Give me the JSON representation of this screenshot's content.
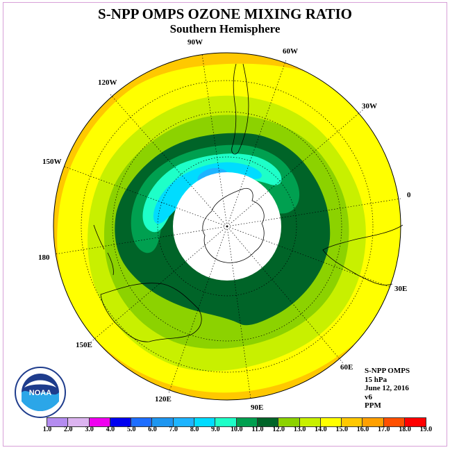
{
  "title": "S-NPP OMPS OZONE MIXING RATIO",
  "subtitle": "Southern Hemisphere",
  "longitude_labels": [
    "90W",
    "60W",
    "30W",
    "0",
    "30E",
    "60E",
    "90E",
    "120E",
    "150E",
    "180",
    "150W",
    "120W"
  ],
  "info": {
    "line1": "S-NPP OMPS",
    "line2": "15 hPa",
    "line3": "June 12, 2016",
    "line4": "v6",
    "line5": "PPM"
  },
  "logo_text": "NOAA",
  "legend": {
    "labels": [
      "1.0",
      "2.0",
      "3.0",
      "4.0",
      "5.0",
      "6.0",
      "7.0",
      "8.0",
      "9.0",
      "10.0",
      "11.0",
      "12.0",
      "13.0",
      "14.0",
      "15.0",
      "16.0",
      "17.0",
      "18.0",
      "19.0"
    ],
    "colors": [
      "#b48cf0",
      "#dcb4f0",
      "#f000f0",
      "#0000f0",
      "#1e6eff",
      "#1e96f0",
      "#1eb4ff",
      "#00dcff",
      "#1effc8",
      "#00a050",
      "#006428",
      "#8cd200",
      "#c8f000",
      "#ffff00",
      "#ffc800",
      "#ffa000",
      "#ff5000",
      "#ff0000",
      "#8c5a32"
    ]
  },
  "map": {
    "projection": "south-polar-stereographic",
    "fill_colors": {
      "outer_ring": "#ffc800",
      "band_14": "#ffff00",
      "band_13": "#c8f000",
      "band_12": "#8cd200",
      "band_11": "#006428",
      "band_10": "#00a050",
      "band_9": "#1effc8",
      "band_8": "#00dcff",
      "band_7": "#1eb4ff",
      "polar_gap": "#ffffff"
    }
  }
}
